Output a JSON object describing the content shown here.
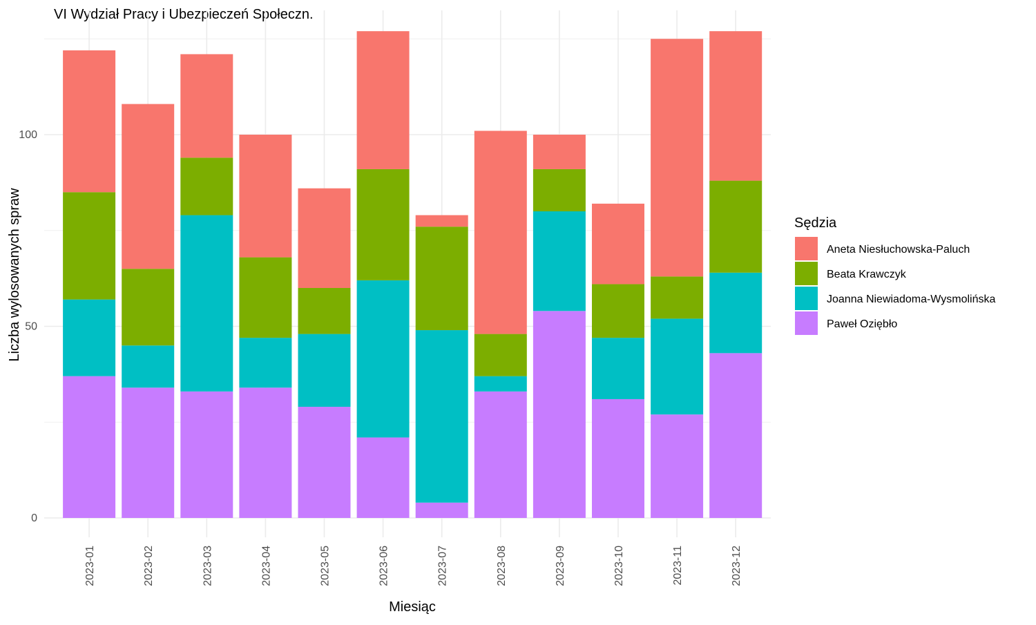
{
  "chart_data": {
    "type": "bar",
    "stacked": true,
    "title": "VI Wydział Pracy i Ubezpieczeń Społeczn.",
    "xlabel": "Miesiąc",
    "ylabel": "Liczba wylosowanych spraw",
    "ylim": [
      0,
      126
    ],
    "yticks": [
      0,
      50,
      100
    ],
    "grid": true,
    "legend": {
      "title": "Sędzia",
      "position": "right"
    },
    "categories": [
      "2023-01",
      "2023-02",
      "2023-03",
      "2023-04",
      "2023-05",
      "2023-06",
      "2023-07",
      "2023-08",
      "2023-09",
      "2023-10",
      "2023-11",
      "2023-12"
    ],
    "series": [
      {
        "name": "Paweł Oziębło",
        "color": "#C77CFF",
        "values": [
          37,
          34,
          33,
          34,
          29,
          21,
          4,
          33,
          54,
          31,
          27,
          43
        ]
      },
      {
        "name": "Joanna Niewiadoma-Wysmolińska",
        "color": "#00BFC4",
        "values": [
          20,
          11,
          46,
          13,
          19,
          41,
          45,
          4,
          26,
          16,
          25,
          21
        ]
      },
      {
        "name": "Beata Krawczyk",
        "color": "#7CAE00",
        "values": [
          28,
          20,
          15,
          21,
          12,
          29,
          27,
          11,
          11,
          14,
          11,
          24
        ]
      },
      {
        "name": "Aneta Niesłuchowska-Paluch",
        "color": "#F8766D",
        "values": [
          37,
          43,
          27,
          32,
          26,
          36,
          3,
          53,
          9,
          21,
          62,
          39
        ]
      }
    ]
  }
}
